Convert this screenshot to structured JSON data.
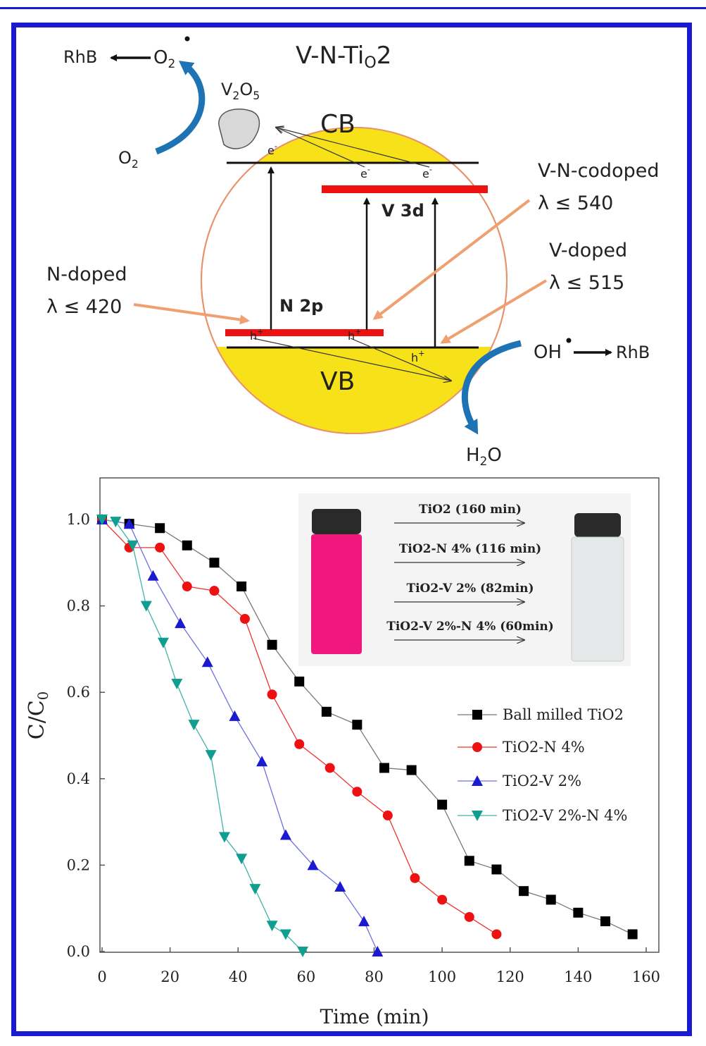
{
  "colors": {
    "frame": "#1a1ad0",
    "band_fill": "#f7e21a",
    "sphere_outline": "#e8926a",
    "level_bar": "#ee1111",
    "curved_arrow": "#1e73b4",
    "pointer_arrow": "#f0a070",
    "vial_pink": "#f0187c",
    "series_colors": [
      "#000000",
      "#ee1111",
      "#1a1ad0",
      "#0f9e90"
    ]
  },
  "scheme": {
    "title": "V-N-TiO2",
    "cb": "CB",
    "vb": "VB",
    "v3d": "V 3d",
    "n2p": "N 2p",
    "electron": "e",
    "hole": "h",
    "oxide": "V2O5",
    "left_react": {
      "rhb": "RhB",
      "o2_rad": "O2",
      "o2": "O2"
    },
    "right_react": {
      "oh": "OH",
      "rhb": "RhB",
      "h2o": "H2O"
    },
    "n_doped": {
      "name": "N-doped",
      "lambda": "λ ≤ 420"
    },
    "vn_codoped": {
      "name": "V-N-codoped",
      "lambda": "λ ≤ 540"
    },
    "v_doped": {
      "name": "V-doped",
      "lambda": "λ ≤ 515"
    }
  },
  "chart_data": {
    "type": "scatter",
    "xlabel": "Time (min)",
    "ylabel": "C/C0",
    "xlim": [
      0,
      160
    ],
    "ylim": [
      0,
      1.0
    ],
    "xticks": [
      0,
      20,
      40,
      60,
      80,
      100,
      120,
      140,
      160
    ],
    "yticks": [
      "0.0",
      "0.2",
      "0.4",
      "0.6",
      "0.8",
      "1.0"
    ],
    "legend_position": "center-right",
    "series": [
      {
        "name": "Ball milled TiO2",
        "marker": "square",
        "x": [
          0,
          8,
          17,
          25,
          33,
          41,
          50,
          58,
          66,
          75,
          83,
          91,
          100,
          108,
          116,
          124,
          132,
          140,
          148,
          156
        ],
        "y": [
          1.0,
          0.99,
          0.98,
          0.94,
          0.9,
          0.845,
          0.71,
          0.625,
          0.555,
          0.525,
          0.425,
          0.42,
          0.34,
          0.21,
          0.19,
          0.14,
          0.12,
          0.09,
          0.07,
          0.04
        ]
      },
      {
        "name": "TiO2-N 4%",
        "marker": "circle",
        "x": [
          0,
          8,
          17,
          25,
          33,
          42,
          50,
          58,
          67,
          75,
          84,
          92,
          100,
          108,
          116
        ],
        "y": [
          1.0,
          0.935,
          0.935,
          0.845,
          0.835,
          0.77,
          0.595,
          0.48,
          0.425,
          0.37,
          0.315,
          0.17,
          0.12,
          0.08,
          0.04
        ]
      },
      {
        "name": "TiO2-V 2%",
        "marker": "triangle-up",
        "x": [
          0,
          8,
          15,
          23,
          31,
          39,
          47,
          54,
          62,
          70,
          77,
          81
        ],
        "y": [
          1.0,
          0.99,
          0.87,
          0.76,
          0.67,
          0.545,
          0.44,
          0.27,
          0.2,
          0.15,
          0.07,
          0.0
        ]
      },
      {
        "name": "TiO2-V 2%-N 4%",
        "marker": "triangle-down",
        "x": [
          0,
          4,
          9,
          13,
          18,
          22,
          27,
          32,
          36,
          41,
          45,
          50,
          54,
          59
        ],
        "y": [
          1.0,
          0.995,
          0.94,
          0.8,
          0.715,
          0.62,
          0.525,
          0.455,
          0.265,
          0.215,
          0.145,
          0.06,
          0.04,
          0.0
        ]
      }
    ],
    "inset": {
      "arrows": [
        "TiO2 (160 min)",
        "TiO2-N 4% (116 min)",
        "TiO2-V 2% (82min)",
        "TiO2-V 2%-N 4% (60min)"
      ]
    }
  }
}
